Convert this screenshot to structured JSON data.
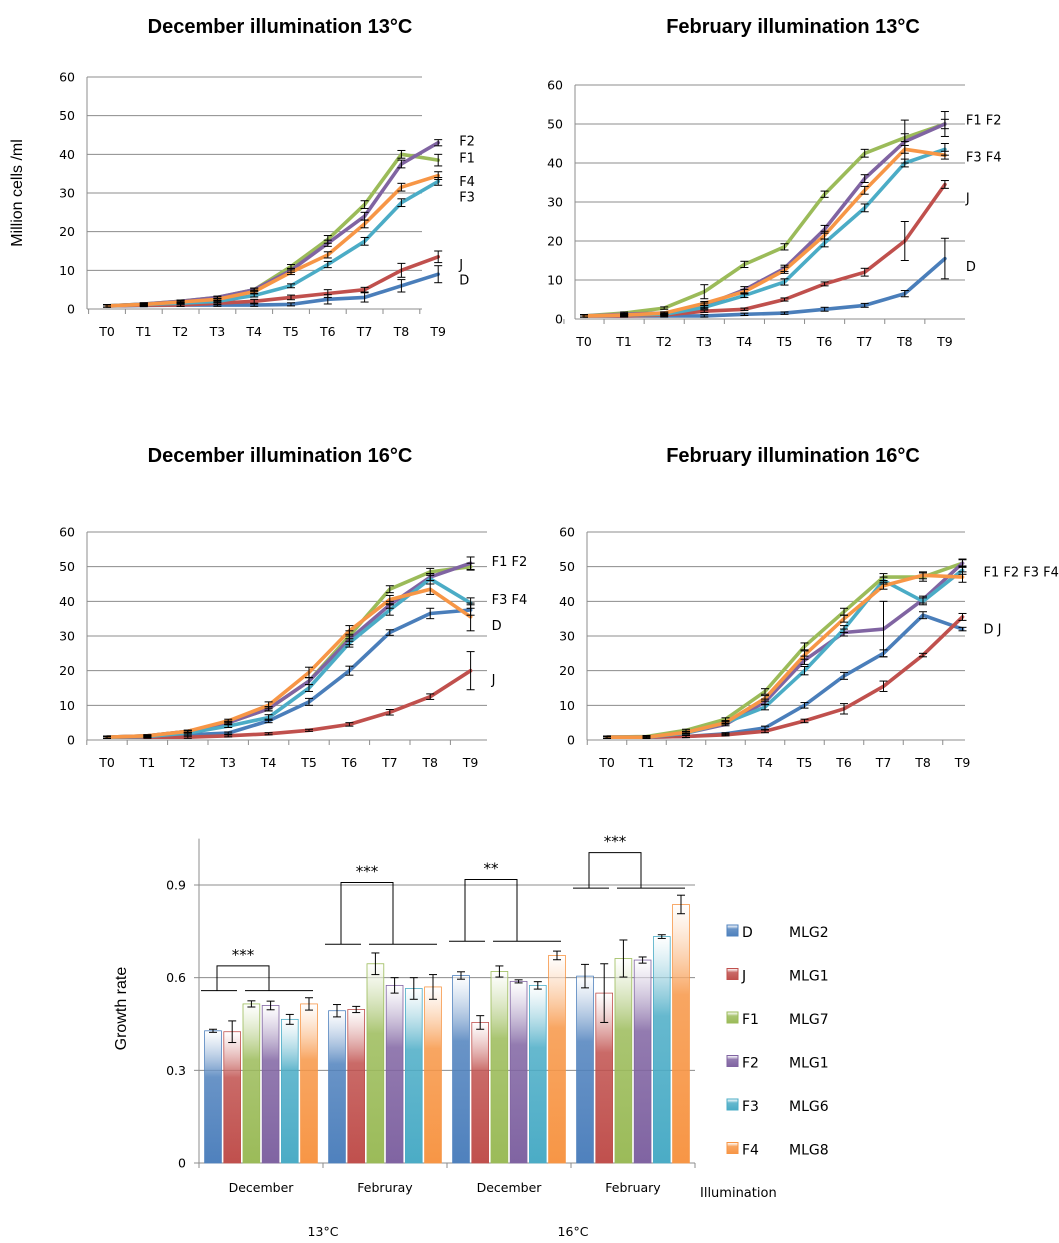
{
  "chart_data": [
    {
      "type": "line",
      "title": "December illumination 13°C",
      "ylabel": "Million cells /ml",
      "xlabel": "",
      "categories": [
        "T0",
        "T1",
        "T2",
        "T3",
        "T4",
        "T5",
        "T6",
        "T7",
        "T8",
        "T9"
      ],
      "ylim": [
        0,
        60
      ],
      "yticks": [
        0,
        10,
        20,
        30,
        40,
        50,
        60
      ],
      "grid": "horizontal",
      "series": [
        {
          "key": "D",
          "color": "#4a7eba",
          "values": [
            0.8,
            0.9,
            1.0,
            1.0,
            1.0,
            1.2,
            2.5,
            3.0,
            6.0,
            9.0
          ],
          "err": [
            0.3,
            0.3,
            0.3,
            0.3,
            0.3,
            0.4,
            1.2,
            1.2,
            1.6,
            2.2
          ]
        },
        {
          "key": "J",
          "color": "#c0504d",
          "values": [
            0.8,
            1.0,
            1.0,
            1.5,
            2.0,
            3.0,
            4.0,
            5.0,
            10.0,
            13.5
          ],
          "err": [
            0.3,
            0.3,
            0.3,
            0.4,
            0.5,
            0.6,
            1.0,
            0.6,
            1.8,
            1.5
          ]
        },
        {
          "key": "F1",
          "color": "#9bbb59",
          "values": [
            0.8,
            1.3,
            2.0,
            3.0,
            5.0,
            11.0,
            18.0,
            27.0,
            40.0,
            38.5
          ],
          "err": [
            0.3,
            0.3,
            0.3,
            0.3,
            0.4,
            0.5,
            1.0,
            1.0,
            1.0,
            1.5
          ]
        },
        {
          "key": "F2",
          "color": "#8064a2",
          "values": [
            0.8,
            1.3,
            2.0,
            3.0,
            5.0,
            10.0,
            17.0,
            24.0,
            37.5,
            43.0
          ],
          "err": [
            0.3,
            0.3,
            0.3,
            0.3,
            0.4,
            0.5,
            0.8,
            1.0,
            1.0,
            0.8
          ]
        },
        {
          "key": "F3",
          "color": "#4bacc6",
          "values": [
            0.8,
            1.2,
            1.5,
            2.0,
            3.5,
            6.0,
            11.5,
            17.5,
            27.5,
            33.0
          ],
          "err": [
            0.3,
            0.3,
            0.3,
            0.3,
            0.4,
            0.5,
            0.8,
            1.0,
            1.0,
            1.0
          ]
        },
        {
          "key": "F4",
          "color": "#f79646",
          "values": [
            0.8,
            1.2,
            1.8,
            2.5,
            4.5,
            9.5,
            14.0,
            22.0,
            31.5,
            34.5
          ],
          "err": [
            0.3,
            0.3,
            0.3,
            0.3,
            0.4,
            0.6,
            0.8,
            1.0,
            1.0,
            1.0
          ]
        }
      ],
      "annotations": [
        {
          "text": "F2",
          "y": 43.5
        },
        {
          "text": "F1",
          "y": 39.0
        },
        {
          "text": "F4",
          "y": 33.0
        },
        {
          "text": "F3",
          "y": 29.0
        },
        {
          "text": "J",
          "y": 11.5
        },
        {
          "text": "D",
          "y": 7.5
        }
      ]
    },
    {
      "type": "line",
      "title": "February illumination 13°C",
      "ylabel": "",
      "xlabel": "",
      "categories": [
        "T0",
        "T1",
        "T2",
        "T3",
        "T4",
        "T5",
        "T6",
        "T7",
        "T8",
        "T9"
      ],
      "ylim": [
        0,
        60
      ],
      "yticks": [
        0,
        10,
        20,
        30,
        40,
        50,
        60
      ],
      "grid": "horizontal",
      "series": [
        {
          "key": "D",
          "color": "#4a7eba",
          "values": [
            0.8,
            0.8,
            0.8,
            0.8,
            1.2,
            1.5,
            2.5,
            3.5,
            6.5,
            15.5
          ],
          "err": [
            0.3,
            0.3,
            0.3,
            0.3,
            0.3,
            0.3,
            0.5,
            0.5,
            0.8,
            5.2
          ]
        },
        {
          "key": "J",
          "color": "#c0504d",
          "values": [
            0.8,
            0.8,
            1.0,
            2.0,
            2.5,
            5.0,
            9.0,
            12.0,
            20.0,
            34.5
          ],
          "err": [
            0.3,
            0.3,
            0.3,
            0.3,
            0.3,
            0.4,
            0.5,
            1.0,
            5.0,
            1.0
          ]
        },
        {
          "key": "F1",
          "color": "#9bbb59",
          "values": [
            0.8,
            1.5,
            2.8,
            7.0,
            14.0,
            18.5,
            32.0,
            42.5,
            46.5,
            50.0
          ],
          "err": [
            0.3,
            0.3,
            0.3,
            1.8,
            0.8,
            0.8,
            0.8,
            1.0,
            1.0,
            1.2
          ]
        },
        {
          "key": "F2",
          "color": "#8064a2",
          "values": [
            0.8,
            1.2,
            1.5,
            3.5,
            7.5,
            13.0,
            23.0,
            36.0,
            45.5,
            50.0
          ],
          "err": [
            0.3,
            0.3,
            0.3,
            0.6,
            0.8,
            0.8,
            1.0,
            1.0,
            5.5,
            3.2
          ]
        },
        {
          "key": "F3",
          "color": "#4bacc6",
          "values": [
            0.8,
            1.0,
            1.2,
            3.0,
            6.0,
            9.5,
            19.5,
            28.5,
            40.0,
            43.5
          ],
          "err": [
            0.3,
            0.3,
            0.3,
            0.4,
            0.5,
            0.8,
            1.0,
            1.0,
            1.0,
            1.5
          ]
        },
        {
          "key": "F4",
          "color": "#f79646",
          "values": [
            0.8,
            1.0,
            1.5,
            4.0,
            7.0,
            12.5,
            21.5,
            33.0,
            43.5,
            42.0
          ],
          "err": [
            0.3,
            0.3,
            0.3,
            0.5,
            0.6,
            0.8,
            1.0,
            1.0,
            1.0,
            1.0
          ]
        }
      ],
      "annotations": [
        {
          "text": "F1 F2",
          "y": 51.0
        },
        {
          "text": "F3 F4",
          "y": 41.5
        },
        {
          "text": "J",
          "y": 31.0
        },
        {
          "text": "D",
          "y": 13.5
        }
      ]
    },
    {
      "type": "line",
      "title": "December illumination 16°C",
      "ylabel": "",
      "xlabel": "",
      "categories": [
        "T0",
        "T1",
        "T2",
        "T3",
        "T4",
        "T5",
        "T6",
        "T7",
        "T8",
        "T9"
      ],
      "ylim": [
        0,
        60
      ],
      "yticks": [
        0,
        10,
        20,
        30,
        40,
        50,
        60
      ],
      "grid": "horizontal",
      "series": [
        {
          "key": "D",
          "color": "#4a7eba",
          "values": [
            0.8,
            1.0,
            1.5,
            2.0,
            5.5,
            11.0,
            20.0,
            31.0,
            36.5,
            37.5
          ],
          "err": [
            0.3,
            0.3,
            0.3,
            0.3,
            0.5,
            1.0,
            1.3,
            0.8,
            1.5,
            1.5
          ]
        },
        {
          "key": "J",
          "color": "#c0504d",
          "values": [
            0.8,
            0.8,
            0.8,
            1.2,
            1.8,
            2.8,
            4.5,
            8.0,
            12.5,
            20.0
          ],
          "err": [
            0.3,
            0.3,
            0.3,
            0.3,
            0.3,
            0.3,
            0.5,
            0.8,
            0.8,
            5.5
          ]
        },
        {
          "key": "F1",
          "color": "#9bbb59",
          "values": [
            0.8,
            1.2,
            2.5,
            5.0,
            9.0,
            17.0,
            30.0,
            43.5,
            48.5,
            50.0
          ],
          "err": [
            0.3,
            0.3,
            0.3,
            0.4,
            0.6,
            1.0,
            1.5,
            1.0,
            1.0,
            1.0
          ]
        },
        {
          "key": "F2",
          "color": "#8064a2",
          "values": [
            0.8,
            1.2,
            2.5,
            5.0,
            9.0,
            17.0,
            29.0,
            39.0,
            47.0,
            51.0
          ],
          "err": [
            0.3,
            0.3,
            0.3,
            0.4,
            0.6,
            1.0,
            1.5,
            1.0,
            1.0,
            1.8
          ]
        },
        {
          "key": "F3",
          "color": "#4bacc6",
          "values": [
            0.8,
            1.0,
            2.0,
            4.0,
            6.5,
            15.0,
            28.0,
            37.5,
            46.5,
            39.5
          ],
          "err": [
            0.3,
            0.3,
            0.3,
            0.4,
            0.8,
            1.0,
            1.2,
            1.5,
            1.5,
            1.5
          ]
        },
        {
          "key": "F4",
          "color": "#f79646",
          "values": [
            0.8,
            1.2,
            2.5,
            5.5,
            10.0,
            19.5,
            31.5,
            40.5,
            43.5,
            35.5
          ],
          "err": [
            0.3,
            0.3,
            0.3,
            0.5,
            1.0,
            1.5,
            1.5,
            1.2,
            1.5,
            4.0
          ]
        }
      ],
      "annotations": [
        {
          "text": "F1 F2",
          "y": 51.5
        },
        {
          "text": "F3 F4",
          "y": 40.5
        },
        {
          "text": "D",
          "y": 33.0
        },
        {
          "text": "J",
          "y": 17.5
        }
      ]
    },
    {
      "type": "line",
      "title": "February illumination 16°C",
      "ylabel": "",
      "xlabel": "",
      "categories": [
        "T0",
        "T1",
        "T2",
        "T3",
        "T4",
        "T5",
        "T6",
        "T7",
        "T8",
        "T9"
      ],
      "ylim": [
        0,
        60
      ],
      "yticks": [
        0,
        10,
        20,
        30,
        40,
        50,
        60
      ],
      "grid": "horizontal",
      "series": [
        {
          "key": "D",
          "color": "#4a7eba",
          "values": [
            0.8,
            0.8,
            1.0,
            1.8,
            3.5,
            10.0,
            18.5,
            25.0,
            36.0,
            32.0
          ],
          "err": [
            0.3,
            0.3,
            0.3,
            0.3,
            0.5,
            0.8,
            1.0,
            1.0,
            1.0,
            0.5
          ]
        },
        {
          "key": "J",
          "color": "#c0504d",
          "values": [
            0.8,
            0.8,
            1.0,
            1.5,
            2.5,
            5.5,
            9.0,
            15.5,
            24.5,
            35.5
          ],
          "err": [
            0.3,
            0.3,
            0.3,
            0.3,
            0.4,
            0.5,
            1.5,
            1.5,
            0.5,
            1.0
          ]
        },
        {
          "key": "F1",
          "color": "#9bbb59",
          "values": [
            0.8,
            1.0,
            2.8,
            6.0,
            14.0,
            27.0,
            37.0,
            47.0,
            47.0,
            51.0
          ],
          "err": [
            0.3,
            0.3,
            0.3,
            0.4,
            0.8,
            1.0,
            1.0,
            1.0,
            1.2,
            1.2
          ]
        },
        {
          "key": "F2",
          "color": "#8064a2",
          "values": [
            0.8,
            0.8,
            2.0,
            4.5,
            11.0,
            23.0,
            31.0,
            32.0,
            40.5,
            51.0
          ],
          "err": [
            0.3,
            0.3,
            0.3,
            0.4,
            0.8,
            1.2,
            1.0,
            8.0,
            1.0,
            1.0
          ]
        },
        {
          "key": "F3",
          "color": "#4bacc6",
          "values": [
            0.8,
            0.8,
            2.0,
            5.0,
            9.5,
            20.0,
            32.0,
            46.0,
            40.0,
            49.0
          ],
          "err": [
            0.3,
            0.3,
            0.3,
            0.4,
            0.8,
            1.2,
            1.0,
            1.0,
            1.0,
            1.2
          ]
        },
        {
          "key": "F4",
          "color": "#f79646",
          "values": [
            0.8,
            0.8,
            2.2,
            5.0,
            12.0,
            24.5,
            35.0,
            44.5,
            47.5,
            47.0
          ],
          "err": [
            0.3,
            0.3,
            0.3,
            0.4,
            0.8,
            1.2,
            1.0,
            1.0,
            1.0,
            1.5
          ]
        }
      ],
      "annotations": [
        {
          "text": "F1 F2 F3 F4",
          "y": 48.5
        },
        {
          "text": "D J",
          "y": 32.0
        }
      ]
    },
    {
      "type": "bar",
      "title": "",
      "ylabel": "Growth rate",
      "xlabel": "Illumination",
      "categories": [
        "December",
        "Februray",
        "December",
        "February"
      ],
      "temperature_labels": [
        "13°C",
        "16°C"
      ],
      "ylim": [
        0,
        1.05
      ],
      "yticks": [
        0,
        0.3,
        0.6,
        0.9
      ],
      "yticklabels": [
        "0",
        "0.3",
        "0.6",
        "0.9"
      ],
      "grid": "horizontal",
      "series": [
        {
          "name": "D",
          "mlg": "MLG2",
          "color": "#4f81bd",
          "values": [
            0.428,
            0.493,
            0.607,
            0.605
          ],
          "err": [
            0.005,
            0.02,
            0.012,
            0.038
          ]
        },
        {
          "name": "J",
          "mlg": "MLG1",
          "color": "#c0504d",
          "values": [
            0.425,
            0.497,
            0.455,
            0.55
          ],
          "err": [
            0.035,
            0.01,
            0.022,
            0.095
          ]
        },
        {
          "name": "F1",
          "mlg": "MLG7",
          "color": "#9bbb59",
          "values": [
            0.515,
            0.645,
            0.62,
            0.662
          ],
          "err": [
            0.01,
            0.035,
            0.018,
            0.06
          ]
        },
        {
          "name": "F2",
          "mlg": "MLG1",
          "color": "#8064a2",
          "values": [
            0.51,
            0.575,
            0.588,
            0.657
          ],
          "err": [
            0.014,
            0.025,
            0.005,
            0.01
          ]
        },
        {
          "name": "F3",
          "mlg": "MLG6",
          "color": "#4bacc6",
          "values": [
            0.465,
            0.565,
            0.575,
            0.733
          ],
          "err": [
            0.016,
            0.035,
            0.012,
            0.006
          ]
        },
        {
          "name": "F4",
          "mlg": "MLG8",
          "color": "#f79646",
          "values": [
            0.515,
            0.57,
            0.672,
            0.837
          ],
          "err": [
            0.02,
            0.04,
            0.014,
            0.03
          ]
        }
      ],
      "significance": [
        {
          "group": 0,
          "stars": "***",
          "level": 0.638
        },
        {
          "group": 1,
          "stars": "***",
          "level": 0.908
        },
        {
          "group": 2,
          "stars": "**",
          "level": 0.918
        },
        {
          "group": 3,
          "stars": "***",
          "level": 1.005
        }
      ],
      "legend": "right"
    }
  ]
}
